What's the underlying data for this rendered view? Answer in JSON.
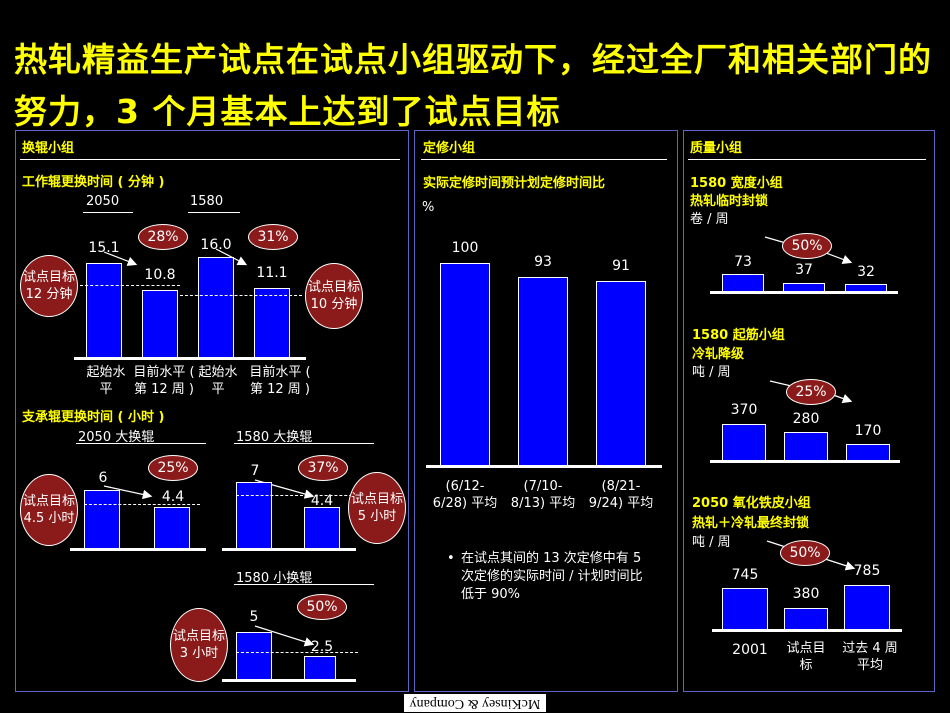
{
  "title": "热轧精益生产试点在试点小组驱动下，经过全厂和相关部门的努力，3 个月基本上达到了试点目标",
  "left_panel": {
    "heading": "换辊小组",
    "work_roll": {
      "subtitle": "工作辊更换时间 ( 分钟 )",
      "group_a": "2050",
      "group_b": "1580",
      "target_a": "试点目标 12 分钟",
      "target_b": "试点目标 10 分钟",
      "pct_a": "28%",
      "pct_b": "31%",
      "cat_start": "起始水平",
      "cat_current": "目前水平 ( 第 12 周 )"
    },
    "backup_roll": {
      "subtitle": "支承辊更换时间 ( 小时 )",
      "g2050": "2050 大换辊",
      "g1580_big": "1580 大换辊",
      "g1580_small": "1580 小换辊",
      "target_2050": "试点目标 4.5 小时",
      "target_1580_big": "试点目标 5 小时",
      "target_1580_small": "试点目标 3 小时",
      "pct_2050": "25%",
      "pct_1580_big": "37%",
      "pct_1580_small": "50%"
    }
  },
  "middle_panel": {
    "heading": "定修小组",
    "subtitle": "实际定修时间预计划定修时间比",
    "unit": "%",
    "bullet": "在试点其间的 13 次定修中有 5 次定修的实际时间 / 计划时间比低于 90%"
  },
  "right_panel": {
    "heading": "质量小组",
    "width_group": {
      "line1": "1580  宽度小组",
      "line2": "热轧临时封锁",
      "unit": "卷 / 周",
      "pct": "50%"
    },
    "crease_group": {
      "line1": "1580  起筋小组",
      "line2": "冷轧降级",
      "unit": "吨 / 周",
      "pct": "25%"
    },
    "oxide_group": {
      "line1": "2050 氧化铁皮小组",
      "line2": "热轧＋冷轧最终封锁",
      "unit": "吨 / 周",
      "pct": "50%"
    }
  },
  "footer": "McKinsey & Company",
  "chart_data": [
    {
      "type": "bar",
      "title": "工作辊更换时间 ( 分钟 )",
      "categories": [
        "2050 起始水平",
        "2050 目前水平 ( 第 12 周 )",
        "1580 起始水平",
        "1580 目前水平 ( 第 12 周 )"
      ],
      "values": [
        15.1,
        10.8,
        16.0,
        11.1
      ],
      "labels": [
        "15.1",
        "10.8",
        "16.0",
        "11.1"
      ],
      "targets": [
        12,
        10
      ]
    },
    {
      "type": "bar",
      "title": "2050 大换辊",
      "values": [
        6,
        4.4
      ],
      "labels": [
        "6",
        "4.4"
      ],
      "target": 4.5
    },
    {
      "type": "bar",
      "title": "1580 大换辊",
      "values": [
        7,
        4.4
      ],
      "labels": [
        "7",
        "4.4"
      ],
      "target": 5
    },
    {
      "type": "bar",
      "title": "1580 小换辊",
      "values": [
        5,
        2.5
      ],
      "labels": [
        "5",
        "2.5"
      ],
      "target": 3
    },
    {
      "type": "bar",
      "title": "实际定修时间预计划定修时间比",
      "categories": [
        "(6/12-6/28) 平均",
        "(7/10-8/13) 平均",
        "(8/21-9/24) 平均"
      ],
      "values": [
        100,
        93,
        91
      ],
      "labels": [
        "100",
        "93",
        "91"
      ],
      "ylabel": "%"
    },
    {
      "type": "bar",
      "title": "1580 宽度小组 热轧临时封锁",
      "ylabel": "卷 / 周",
      "values": [
        73,
        37,
        32
      ],
      "labels": [
        "73",
        "37",
        "32"
      ]
    },
    {
      "type": "bar",
      "title": "1580 起筋小组 冷轧降级",
      "ylabel": "吨 / 周",
      "values": [
        370,
        280,
        170
      ],
      "labels": [
        "370",
        "280",
        "170"
      ]
    },
    {
      "type": "bar",
      "title": "2050 氧化铁皮小组 热轧＋冷轧最终封锁",
      "ylabel": "吨 / 周",
      "categories": [
        "2001",
        "试点目标",
        "过去 4 周平均"
      ],
      "values": [
        745,
        380,
        785
      ],
      "labels": [
        "745",
        "380",
        "785"
      ]
    }
  ]
}
